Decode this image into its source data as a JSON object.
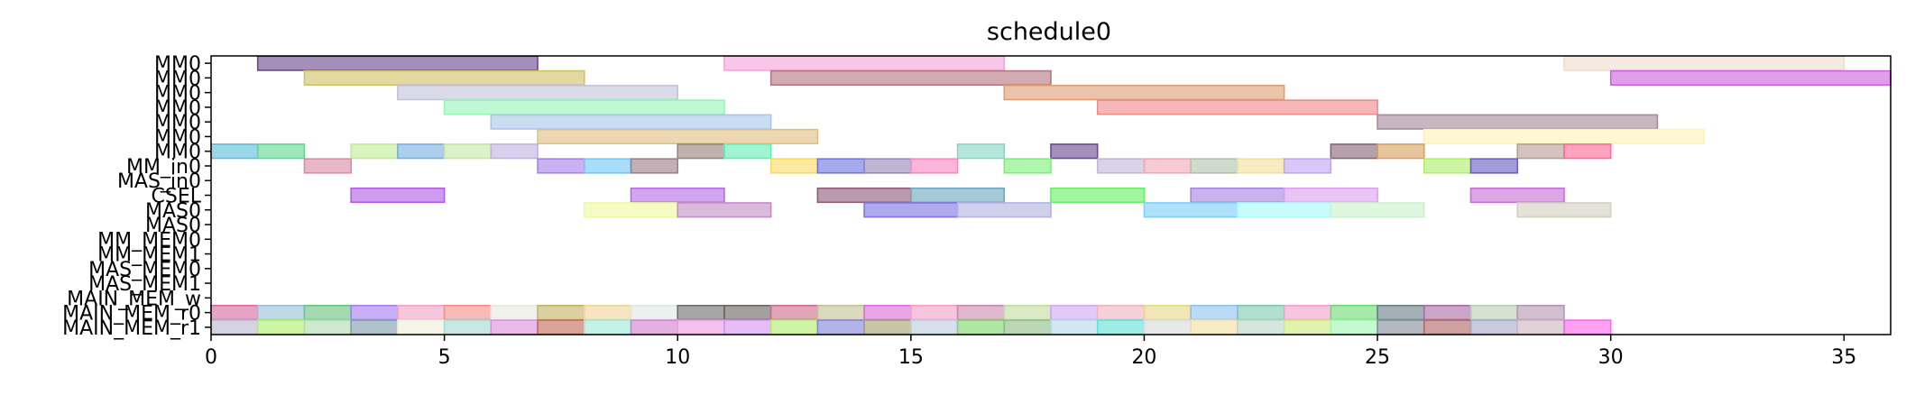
{
  "chart_data": {
    "type": "gantt",
    "title": "schedule0",
    "xlabel": "",
    "ylabel": "",
    "xlim": [
      0,
      36
    ],
    "x_ticks": [
      0,
      5,
      10,
      15,
      20,
      25,
      30,
      35
    ],
    "grid": false,
    "rows": [
      "MM0",
      "MM0",
      "MM0",
      "MM0",
      "MM0",
      "MM0",
      "MM0",
      "MM_in0",
      "MAS_in0",
      "CSEL",
      "MAS0",
      "MAS0",
      "MM_MEM0",
      "MM_MEM1",
      "MAS_MEM0",
      "MAS_MEM1",
      "MAIN_MEM_w",
      "MAIN_MEM_r0",
      "MAIN_MEM_r1"
    ],
    "bars": [
      {
        "row": 0,
        "start": 1,
        "end": 7,
        "color": "#6b4a8a"
      },
      {
        "row": 0,
        "start": 11,
        "end": 17,
        "color": "#f5a3dc"
      },
      {
        "row": 0,
        "start": 29,
        "end": 35,
        "color": "#f0dccc"
      },
      {
        "row": 1,
        "start": 2,
        "end": 8,
        "color": "#cfc266"
      },
      {
        "row": 1,
        "start": 12,
        "end": 18,
        "color": "#b67683"
      },
      {
        "row": 1,
        "start": 30,
        "end": 36,
        "color": "#cd63dd"
      },
      {
        "row": 2,
        "start": 4,
        "end": 10,
        "color": "#c3c3da"
      },
      {
        "row": 2,
        "start": 17,
        "end": 23,
        "color": "#df9e75"
      },
      {
        "row": 3,
        "start": 5,
        "end": 11,
        "color": "#98f5b8"
      },
      {
        "row": 3,
        "start": 19,
        "end": 25,
        "color": "#ef8a8a"
      },
      {
        "row": 4,
        "start": 6,
        "end": 12,
        "color": "#a9c6e8"
      },
      {
        "row": 4,
        "start": 25,
        "end": 31,
        "color": "#a78b9c"
      },
      {
        "row": 5,
        "start": 7,
        "end": 13,
        "color": "#dfc082"
      },
      {
        "row": 5,
        "start": 26,
        "end": 32,
        "color": "#fcf3b8"
      },
      {
        "row": 6,
        "start": 0,
        "end": 1,
        "color": "#5ec0d8"
      },
      {
        "row": 6,
        "start": 1,
        "end": 2,
        "color": "#60d891"
      },
      {
        "row": 6,
        "start": 3,
        "end": 4,
        "color": "#c2eb97"
      },
      {
        "row": 6,
        "start": 4,
        "end": 5,
        "color": "#7ab0e3"
      },
      {
        "row": 6,
        "start": 5,
        "end": 6,
        "color": "#c6e6a8"
      },
      {
        "row": 6,
        "start": 6,
        "end": 7,
        "color": "#c0b3e0"
      },
      {
        "row": 6,
        "start": 10,
        "end": 11,
        "color": "#9a847d"
      },
      {
        "row": 6,
        "start": 11,
        "end": 12,
        "color": "#64efb6"
      },
      {
        "row": 6,
        "start": 16,
        "end": 17,
        "color": "#86d6c6"
      },
      {
        "row": 6,
        "start": 18,
        "end": 19,
        "color": "#6a4c92"
      },
      {
        "row": 6,
        "start": 24,
        "end": 25,
        "color": "#896674"
      },
      {
        "row": 6,
        "start": 25,
        "end": 26,
        "color": "#d8a163"
      },
      {
        "row": 6,
        "start": 28,
        "end": 29,
        "color": "#b99e98"
      },
      {
        "row": 6,
        "start": 29,
        "end": 30,
        "color": "#ff6a9a"
      },
      {
        "row": 7,
        "start": 2,
        "end": 3,
        "color": "#da8ba6"
      },
      {
        "row": 7,
        "start": 7,
        "end": 8,
        "color": "#a783e8"
      },
      {
        "row": 7,
        "start": 8,
        "end": 9,
        "color": "#74c7f9"
      },
      {
        "row": 7,
        "start": 9,
        "end": 10,
        "color": "#9e7f8a"
      },
      {
        "row": 7,
        "start": 12,
        "end": 13,
        "color": "#f7dc62"
      },
      {
        "row": 7,
        "start": 13,
        "end": 14,
        "color": "#6f76e0"
      },
      {
        "row": 7,
        "start": 14,
        "end": 15,
        "color": "#9a87b6"
      },
      {
        "row": 7,
        "start": 15,
        "end": 16,
        "color": "#ff86c3"
      },
      {
        "row": 7,
        "start": 17,
        "end": 18,
        "color": "#7fee7a"
      },
      {
        "row": 7,
        "start": 19,
        "end": 20,
        "color": "#c3b6d8"
      },
      {
        "row": 7,
        "start": 20,
        "end": 21,
        "color": "#efaab8"
      },
      {
        "row": 7,
        "start": 21,
        "end": 22,
        "color": "#b2c3ad"
      },
      {
        "row": 7,
        "start": 22,
        "end": 23,
        "color": "#f2e19b"
      },
      {
        "row": 7,
        "start": 23,
        "end": 24,
        "color": "#c0a6f5"
      },
      {
        "row": 7,
        "start": 26,
        "end": 27,
        "color": "#b0ef6b"
      },
      {
        "row": 7,
        "start": 27,
        "end": 28,
        "color": "#6a60c0"
      },
      {
        "row": 9,
        "start": 3,
        "end": 5,
        "color": "#b05ee3"
      },
      {
        "row": 9,
        "start": 9,
        "end": 11,
        "color": "#b46de5"
      },
      {
        "row": 9,
        "start": 13,
        "end": 15,
        "color": "#8e5c79"
      },
      {
        "row": 9,
        "start": 15,
        "end": 17,
        "color": "#6fa8c0"
      },
      {
        "row": 9,
        "start": 18,
        "end": 20,
        "color": "#6aef68"
      },
      {
        "row": 9,
        "start": 21,
        "end": 23,
        "color": "#a784e2"
      },
      {
        "row": 9,
        "start": 23,
        "end": 25,
        "color": "#dca0ef"
      },
      {
        "row": 9,
        "start": 27,
        "end": 29,
        "color": "#c66fd8"
      },
      {
        "row": 10,
        "start": 8,
        "end": 10,
        "color": "#eefaa0"
      },
      {
        "row": 10,
        "start": 10,
        "end": 12,
        "color": "#c38ec6"
      },
      {
        "row": 10,
        "start": 14,
        "end": 16,
        "color": "#7e76e2"
      },
      {
        "row": 10,
        "start": 16,
        "end": 18,
        "color": "#b3b3e2"
      },
      {
        "row": 10,
        "start": 20,
        "end": 22,
        "color": "#7cd0f8"
      },
      {
        "row": 10,
        "start": 22,
        "end": 24,
        "color": "#a8fcf9"
      },
      {
        "row": 10,
        "start": 24,
        "end": 26,
        "color": "#cdf2cc"
      },
      {
        "row": 10,
        "start": 28,
        "end": 30,
        "color": "#d3d0c0"
      },
      {
        "row": 17,
        "start": 0,
        "end": 1,
        "color": "#d96aa3"
      },
      {
        "row": 17,
        "start": 1,
        "end": 2,
        "color": "#9ac2dc"
      },
      {
        "row": 17,
        "start": 2,
        "end": 3,
        "color": "#6cc483"
      },
      {
        "row": 17,
        "start": 3,
        "end": 4,
        "color": "#a87ef2"
      },
      {
        "row": 17,
        "start": 4,
        "end": 5,
        "color": "#f2a2c9"
      },
      {
        "row": 17,
        "start": 5,
        "end": 6,
        "color": "#f29290"
      },
      {
        "row": 17,
        "start": 6,
        "end": 7,
        "color": "#e8e8de"
      },
      {
        "row": 17,
        "start": 7,
        "end": 8,
        "color": "#c5b564"
      },
      {
        "row": 17,
        "start": 8,
        "end": 9,
        "color": "#f1d59a"
      },
      {
        "row": 17,
        "start": 9,
        "end": 10,
        "color": "#dde8e4"
      },
      {
        "row": 17,
        "start": 10,
        "end": 11,
        "color": "#6f6f6f"
      },
      {
        "row": 17,
        "start": 11,
        "end": 12,
        "color": "#6a6666"
      },
      {
        "row": 17,
        "start": 12,
        "end": 13,
        "color": "#d06c8e"
      },
      {
        "row": 17,
        "start": 13,
        "end": 14,
        "color": "#c7c196"
      },
      {
        "row": 17,
        "start": 14,
        "end": 15,
        "color": "#dd6cdd"
      },
      {
        "row": 17,
        "start": 15,
        "end": 16,
        "color": "#f6a0c8"
      },
      {
        "row": 17,
        "start": 16,
        "end": 17,
        "color": "#cf8ab2"
      },
      {
        "row": 17,
        "start": 17,
        "end": 18,
        "color": "#c0dea2"
      },
      {
        "row": 17,
        "start": 18,
        "end": 19,
        "color": "#d0a8f4"
      },
      {
        "row": 17,
        "start": 19,
        "end": 20,
        "color": "#edb4c0"
      },
      {
        "row": 17,
        "start": 20,
        "end": 21,
        "color": "#e6d88a"
      },
      {
        "row": 17,
        "start": 21,
        "end": 22,
        "color": "#8ec3f4"
      },
      {
        "row": 17,
        "start": 22,
        "end": 23,
        "color": "#7fcab2"
      },
      {
        "row": 17,
        "start": 23,
        "end": 24,
        "color": "#f39fd0"
      },
      {
        "row": 17,
        "start": 24,
        "end": 25,
        "color": "#6fdb78"
      },
      {
        "row": 17,
        "start": 25,
        "end": 26,
        "color": "#6a8088"
      },
      {
        "row": 17,
        "start": 26,
        "end": 27,
        "color": "#a86da6"
      },
      {
        "row": 17,
        "start": 27,
        "end": 28,
        "color": "#b8cfb0"
      },
      {
        "row": 17,
        "start": 28,
        "end": 29,
        "color": "#b696b4"
      },
      {
        "row": 18,
        "start": 0,
        "end": 1,
        "color": "#b8b8d4"
      },
      {
        "row": 18,
        "start": 1,
        "end": 2,
        "color": "#adf06a"
      },
      {
        "row": 18,
        "start": 2,
        "end": 3,
        "color": "#b2dcb1"
      },
      {
        "row": 18,
        "start": 3,
        "end": 4,
        "color": "#7f9eaf"
      },
      {
        "row": 18,
        "start": 4,
        "end": 5,
        "color": "#eeeed8"
      },
      {
        "row": 18,
        "start": 5,
        "end": 6,
        "color": "#a7dad8"
      },
      {
        "row": 18,
        "start": 6,
        "end": 7,
        "color": "#dc92de"
      },
      {
        "row": 18,
        "start": 7,
        "end": 8,
        "color": "#c46c58"
      },
      {
        "row": 18,
        "start": 8,
        "end": 9,
        "color": "#a0e8da"
      },
      {
        "row": 18,
        "start": 9,
        "end": 10,
        "color": "#d47fd0"
      },
      {
        "row": 18,
        "start": 10,
        "end": 11,
        "color": "#ee9ae6"
      },
      {
        "row": 18,
        "start": 11,
        "end": 12,
        "color": "#d994f4"
      },
      {
        "row": 18,
        "start": 12,
        "end": 13,
        "color": "#b1ee6d"
      },
      {
        "row": 18,
        "start": 13,
        "end": 14,
        "color": "#8585dc"
      },
      {
        "row": 18,
        "start": 14,
        "end": 15,
        "color": "#a4a272"
      },
      {
        "row": 18,
        "start": 15,
        "end": 16,
        "color": "#bccde0"
      },
      {
        "row": 18,
        "start": 16,
        "end": 17,
        "color": "#7dd76a"
      },
      {
        "row": 18,
        "start": 17,
        "end": 18,
        "color": "#8fbe8c"
      },
      {
        "row": 18,
        "start": 18,
        "end": 19,
        "color": "#b8d9ec"
      },
      {
        "row": 18,
        "start": 19,
        "end": 20,
        "color": "#60e2da"
      },
      {
        "row": 18,
        "start": 20,
        "end": 21,
        "color": "#d9dcdc"
      },
      {
        "row": 18,
        "start": 21,
        "end": 22,
        "color": "#f7dea4"
      },
      {
        "row": 18,
        "start": 22,
        "end": 23,
        "color": "#bcd9c6"
      },
      {
        "row": 18,
        "start": 23,
        "end": 24,
        "color": "#cdea7a"
      },
      {
        "row": 18,
        "start": 24,
        "end": 25,
        "color": "#a2f5b3"
      },
      {
        "row": 18,
        "start": 25,
        "end": 26,
        "color": "#848e96"
      },
      {
        "row": 18,
        "start": 26,
        "end": 27,
        "color": "#b06868"
      },
      {
        "row": 18,
        "start": 27,
        "end": 28,
        "color": "#a8a8cc"
      },
      {
        "row": 18,
        "start": 28,
        "end": 29,
        "color": "#cdb6be"
      },
      {
        "row": 18,
        "start": 29,
        "end": 30,
        "color": "#ff66ef"
      }
    ]
  }
}
